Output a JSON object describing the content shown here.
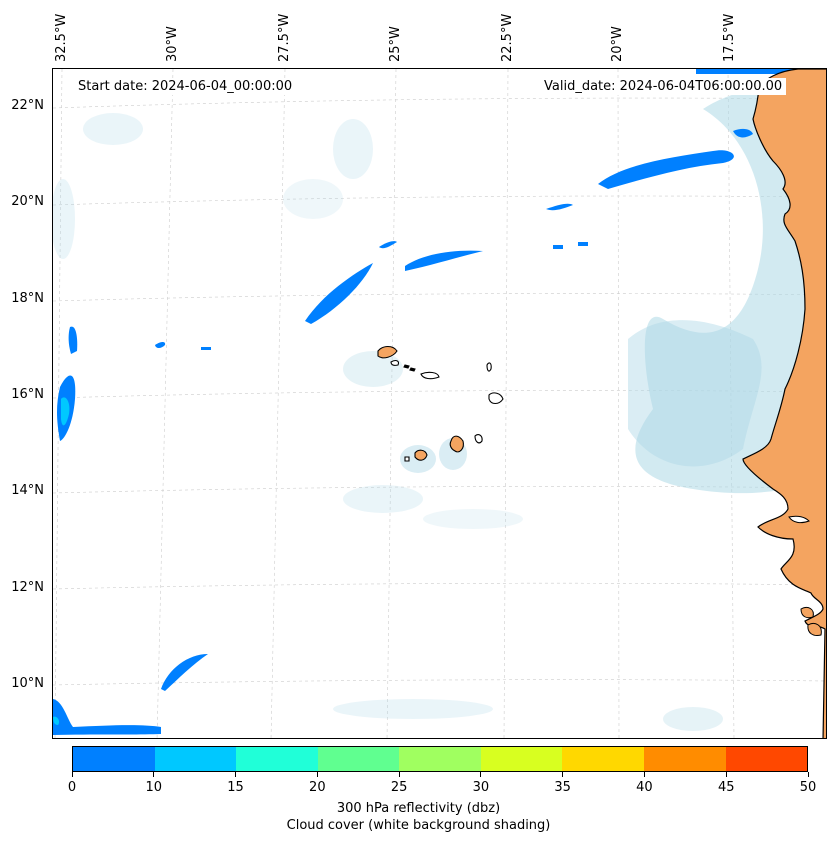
{
  "map": {
    "start_date": "Start date: 2024-06-04_00:00:00",
    "valid_date": "Valid_date: 2024-06-04T06:00:00.00",
    "lat_labels": [
      "22°N",
      "20°N",
      "18°N",
      "16°N",
      "14°N",
      "12°N",
      "10°N"
    ],
    "lon_labels": [
      "32.5°W",
      "30°W",
      "27.5°W",
      "25°W",
      "22.5°W",
      "20°W",
      "17.5°W"
    ],
    "land_color": "#f4a460",
    "cloud_color": "#add8e6",
    "reflectivity_low_color": "#0080ff"
  },
  "colorbar": {
    "ticks": [
      "0",
      "10",
      "15",
      "20",
      "25",
      "30",
      "35",
      "40",
      "45",
      "50"
    ],
    "colors": [
      "#0080ff",
      "#00c8ff",
      "#20ffd8",
      "#60ff90",
      "#a0ff60",
      "#d8ff20",
      "#ffd800",
      "#ff8c00",
      "#ff4800"
    ],
    "label_line1": "300 hPa reflectivity (dbz)",
    "label_line2": "Cloud cover (white background shading)"
  }
}
